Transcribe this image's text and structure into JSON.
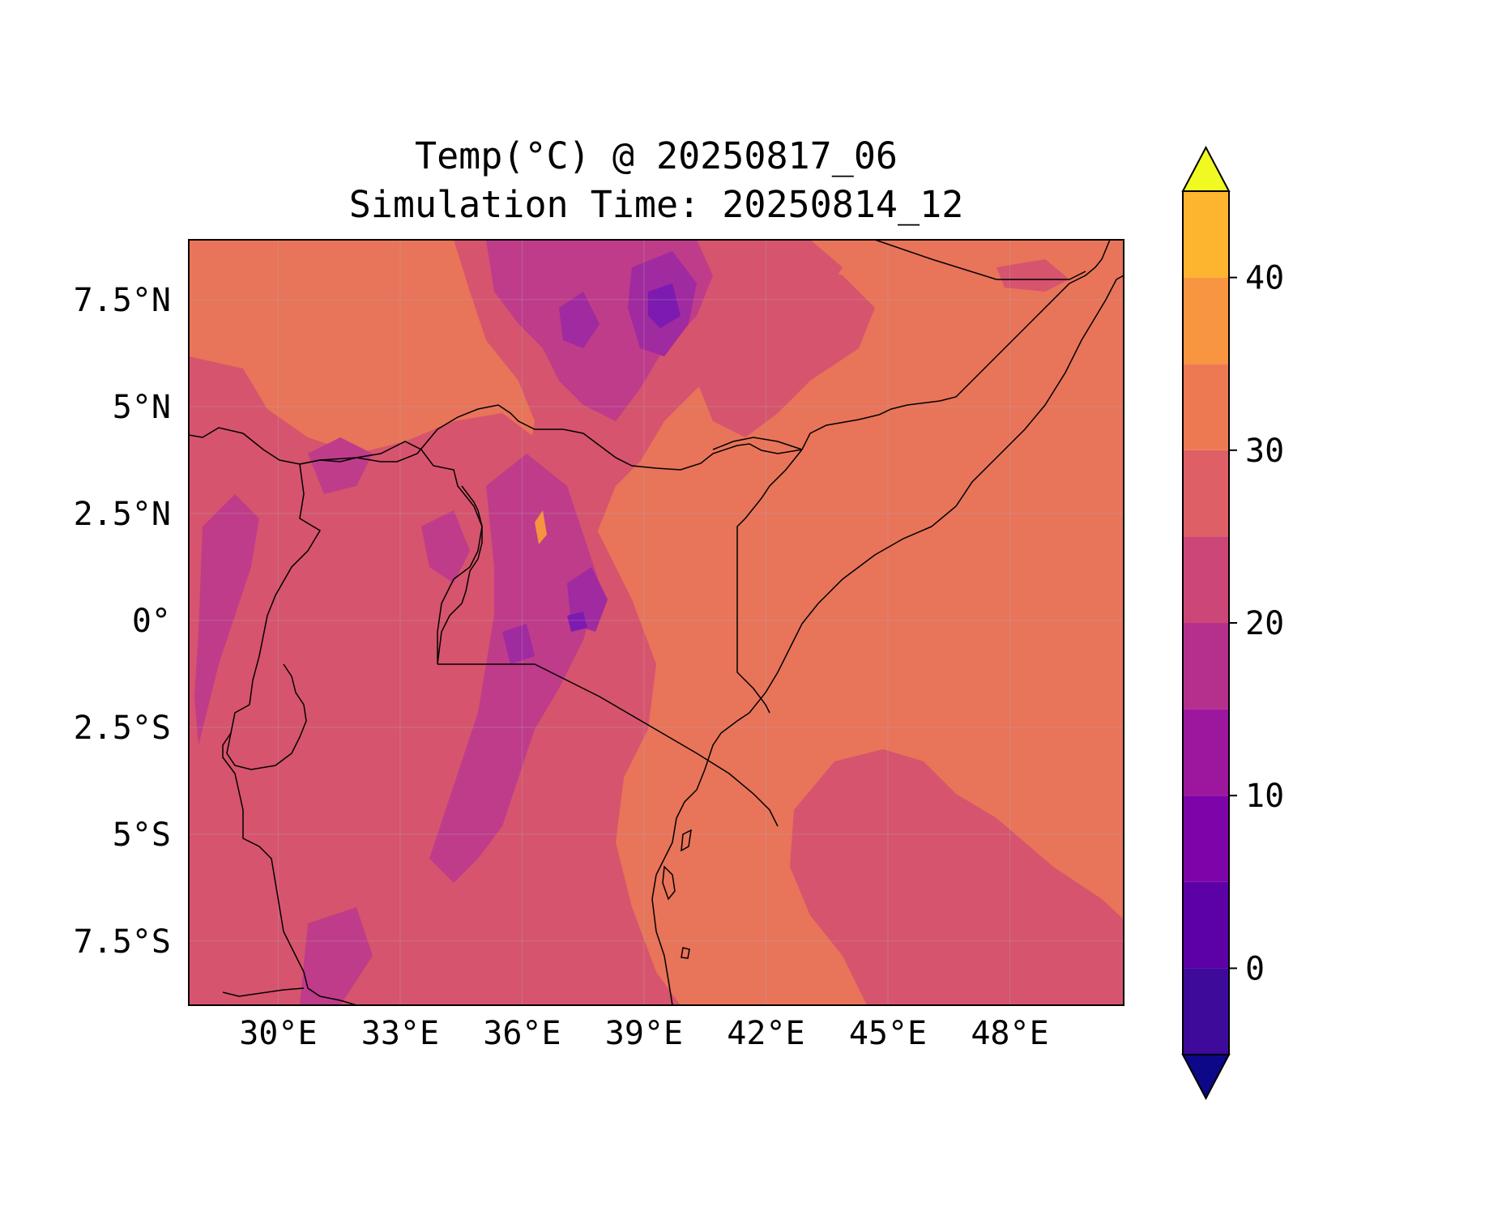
{
  "title": {
    "line1": "Temp(°C) @ 20250817_06",
    "line2": "Simulation Time: 20250814_12"
  },
  "map": {
    "variable": "Temp(°C)",
    "lon_range": [
      27.8,
      50.8
    ],
    "lat_range": [
      -9.0,
      8.9
    ],
    "x_ticks": [
      {
        "value": 30,
        "label": "30°E"
      },
      {
        "value": 33,
        "label": "33°E"
      },
      {
        "value": 36,
        "label": "36°E"
      },
      {
        "value": 39,
        "label": "39°E"
      },
      {
        "value": 42,
        "label": "42°E"
      },
      {
        "value": 45,
        "label": "45°E"
      },
      {
        "value": 48,
        "label": "48°E"
      }
    ],
    "y_ticks": [
      {
        "value": 7.5,
        "label": "7.5°N"
      },
      {
        "value": 5,
        "label": "5°N"
      },
      {
        "value": 2.5,
        "label": "2.5°N"
      },
      {
        "value": 0,
        "label": "0°"
      },
      {
        "value": -2.5,
        "label": "2.5°S"
      },
      {
        "value": -5,
        "label": "5°S"
      },
      {
        "value": -7.5,
        "label": "7.5°S"
      }
    ],
    "gridlines": true,
    "background_color": "#e8745a",
    "zone_colors": {
      "warm": "#e8745a",
      "mild": "#d6546d",
      "cool": "#bf3c8a",
      "cold": "#a02aa0",
      "coldest": "#7d1ab0",
      "hot": "#f5953f"
    }
  },
  "colorbar": {
    "levels": [
      -5,
      0,
      5,
      10,
      15,
      20,
      25,
      30,
      35,
      40,
      45
    ],
    "colors": [
      "#1f0c8a",
      "#3d0a9a",
      "#5c01a6",
      "#7e03a8",
      "#9c179e",
      "#b52f8c",
      "#cc4778",
      "#de5f65",
      "#ed7953",
      "#f89540",
      "#fdb42f",
      "#f0f921"
    ],
    "extend": "both",
    "under_color": "#0d0887",
    "over_color": "#f0f921",
    "tick_labels": [
      {
        "value": 0,
        "label": "0"
      },
      {
        "value": 10,
        "label": "10"
      },
      {
        "value": 20,
        "label": "20"
      },
      {
        "value": 30,
        "label": "30"
      },
      {
        "value": 40,
        "label": "40"
      }
    ]
  }
}
